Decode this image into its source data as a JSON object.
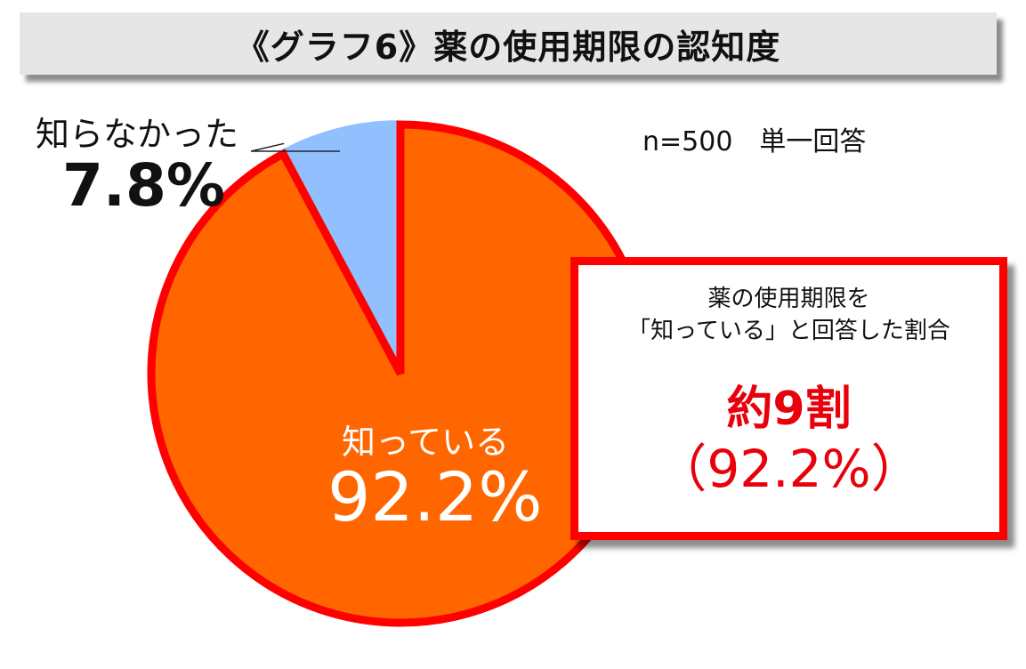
{
  "header": {
    "title": "《グラフ6》薬の使用期限の認知度"
  },
  "note": "n=500　単一回答",
  "chart_data": {
    "type": "pie",
    "slices": [
      {
        "label": "知っている",
        "value": 92.2,
        "value_label": "92.2%",
        "color": "#ff6600"
      },
      {
        "label": "知らなかった",
        "value": 7.8,
        "value_label": "7.8%",
        "color": "#92c0ff"
      }
    ],
    "highlight_border_color": "#ff0000"
  },
  "callout": {
    "line1": "薬の使用期限を",
    "line2": "「知っている」と回答した割合",
    "main": "約9割",
    "percent": "（92.2%）"
  }
}
